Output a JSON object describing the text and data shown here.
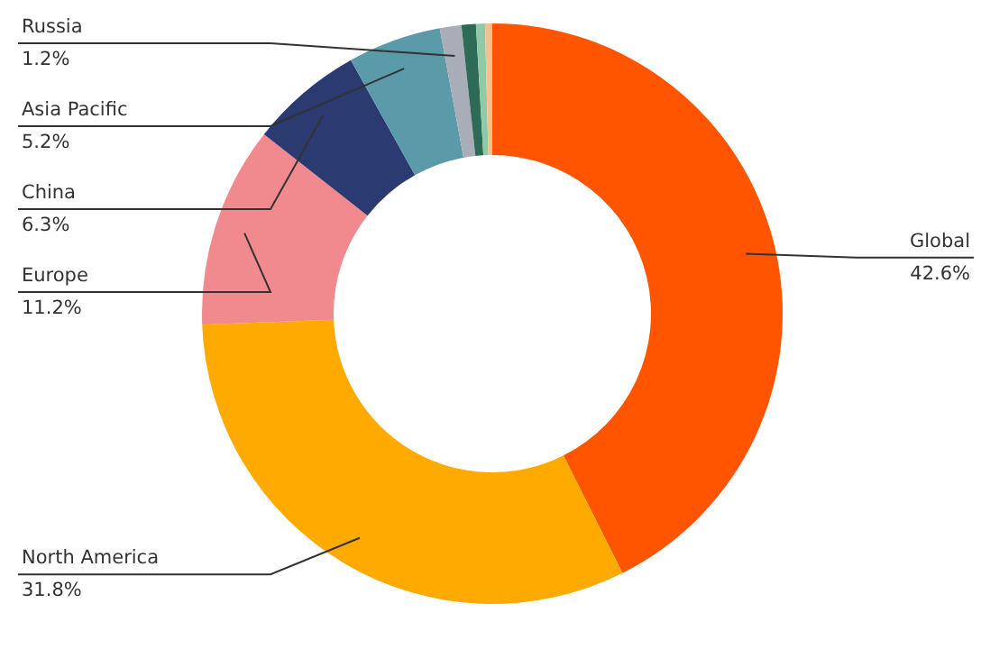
{
  "chart_data": {
    "type": "donut",
    "categories": [
      "Global",
      "North America",
      "Europe",
      "China",
      "Asia Pacific",
      "Russia",
      null,
      null,
      null
    ],
    "values": [
      42.6,
      31.8,
      11.2,
      6.3,
      5.2,
      1.2,
      0.8,
      0.5,
      0.4
    ],
    "colors": [
      "#ff5500",
      "#ffaa00",
      "#f08a8e",
      "#2b3a70",
      "#5b9aa8",
      "#a8adb8",
      "#2e6b56",
      "#8fc9a8",
      "#f5c08a"
    ],
    "value_labels": [
      "42.6%",
      "31.8%",
      "11.2%",
      "6.3%",
      "5.2%",
      "1.2%",
      null,
      null,
      null
    ]
  }
}
